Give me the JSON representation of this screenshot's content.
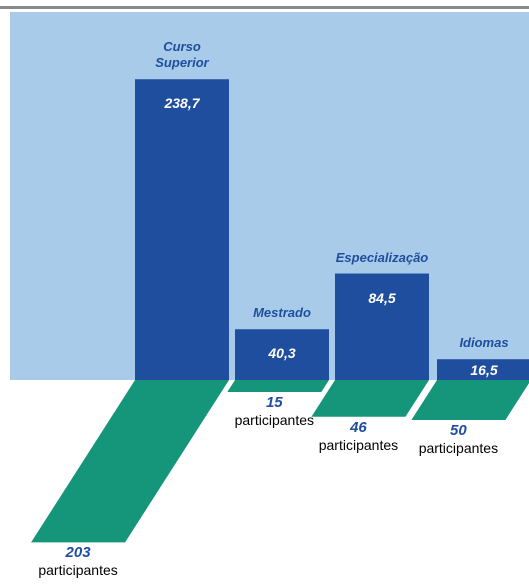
{
  "chart_data": {
    "type": "bar",
    "categories": [
      "Curso Superior",
      "Mestrado",
      "Especialização",
      "Idiomas"
    ],
    "values": [
      238.7,
      40.3,
      84.5,
      16.5
    ],
    "value_labels": [
      "238,7",
      "40,3",
      "84,5",
      "16,5"
    ],
    "color": "#1f4e9f",
    "ylim": [
      0,
      250
    ],
    "participants": {
      "values": [
        203,
        15,
        46,
        50
      ],
      "unit_label": "participantes",
      "color": "#15967a"
    }
  }
}
